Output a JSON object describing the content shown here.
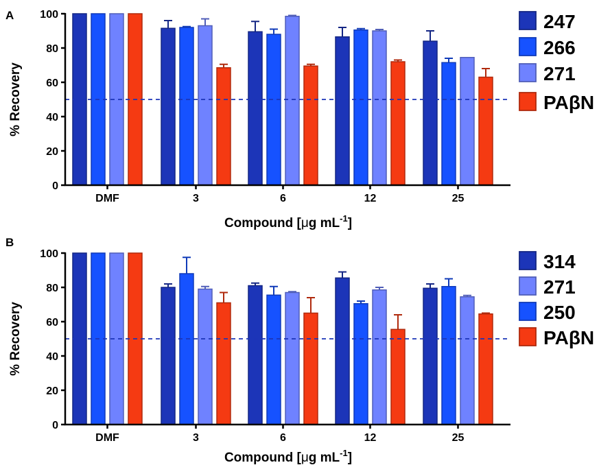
{
  "colors": {
    "s247": "#1c35b8",
    "s266": "#1652ff",
    "s271": "#6f82ff",
    "s250": "#1652ff",
    "s314": "#1c35b8",
    "pabn": "#f53a12",
    "axis": "#000000",
    "threshold": "#1c35b8"
  },
  "chart_data": [
    {
      "type": "bar",
      "panel_label": "A",
      "title": "",
      "xlabel_main": "Compound [",
      "xlabel_mu": "μ",
      "xlabel_rest": "g mL",
      "xlabel_sup": "-1",
      "xlabel_close": "]",
      "ylabel": "% Recovery",
      "ylim": [
        0,
        100
      ],
      "yticks": [
        "0",
        "20",
        "40",
        "60",
        "80",
        "100"
      ],
      "threshold": 50,
      "categories": [
        "DMF",
        "3",
        "6",
        "12",
        "25"
      ],
      "series": [
        {
          "name": "247",
          "color_key": "s247",
          "values": [
            100,
            91.5,
            89.5,
            86.5,
            84
          ],
          "errors": [
            0,
            4.5,
            6,
            5.5,
            6
          ]
        },
        {
          "name": "266",
          "color_key": "s266",
          "values": [
            100,
            92,
            88,
            90.5,
            71.5
          ],
          "errors": [
            0,
            0.5,
            3,
            0.8,
            2.5
          ]
        },
        {
          "name": "271",
          "color_key": "s271",
          "values": [
            100,
            93,
            98.5,
            90,
            74.5
          ],
          "errors": [
            0,
            4,
            0.5,
            0.8,
            0
          ]
        },
        {
          "name": "PAβN",
          "color_key": "pabn",
          "values": [
            100,
            68.5,
            69.5,
            72,
            63
          ],
          "errors": [
            0,
            2,
            1,
            1,
            5
          ]
        }
      ]
    },
    {
      "type": "bar",
      "panel_label": "B",
      "title": "",
      "xlabel_main": "Compound [",
      "xlabel_mu": "μ",
      "xlabel_rest": "g mL",
      "xlabel_sup": "-1",
      "xlabel_close": "]",
      "ylabel": "% Recovery",
      "ylim": [
        0,
        100
      ],
      "yticks": [
        "0",
        "20",
        "40",
        "60",
        "80",
        "100"
      ],
      "threshold": 50,
      "categories": [
        "DMF",
        "3",
        "6",
        "12",
        "25"
      ],
      "series": [
        {
          "name": "314",
          "color_key": "s314",
          "values": [
            100,
            80,
            81,
            85.5,
            79.5
          ],
          "errors": [
            0,
            2,
            1.5,
            3.5,
            2.5
          ]
        },
        {
          "name": "250",
          "color_key": "s250",
          "values": [
            100,
            88,
            75.5,
            70.5,
            80.5
          ],
          "errors": [
            0,
            9.5,
            5,
            1.5,
            4.5
          ]
        },
        {
          "name": "271",
          "color_key": "s271",
          "values": [
            100,
            79,
            77,
            78.5,
            74.5
          ],
          "errors": [
            0,
            1.5,
            0.5,
            1.5,
            0.8
          ]
        },
        {
          "name": "PAβN",
          "color_key": "pabn",
          "values": [
            100,
            71,
            65,
            55.5,
            64.5
          ],
          "errors": [
            0,
            6,
            9,
            8.5,
            0.5
          ]
        }
      ],
      "legend_order": [
        "314",
        "271",
        "250",
        "PAβN"
      ]
    }
  ]
}
